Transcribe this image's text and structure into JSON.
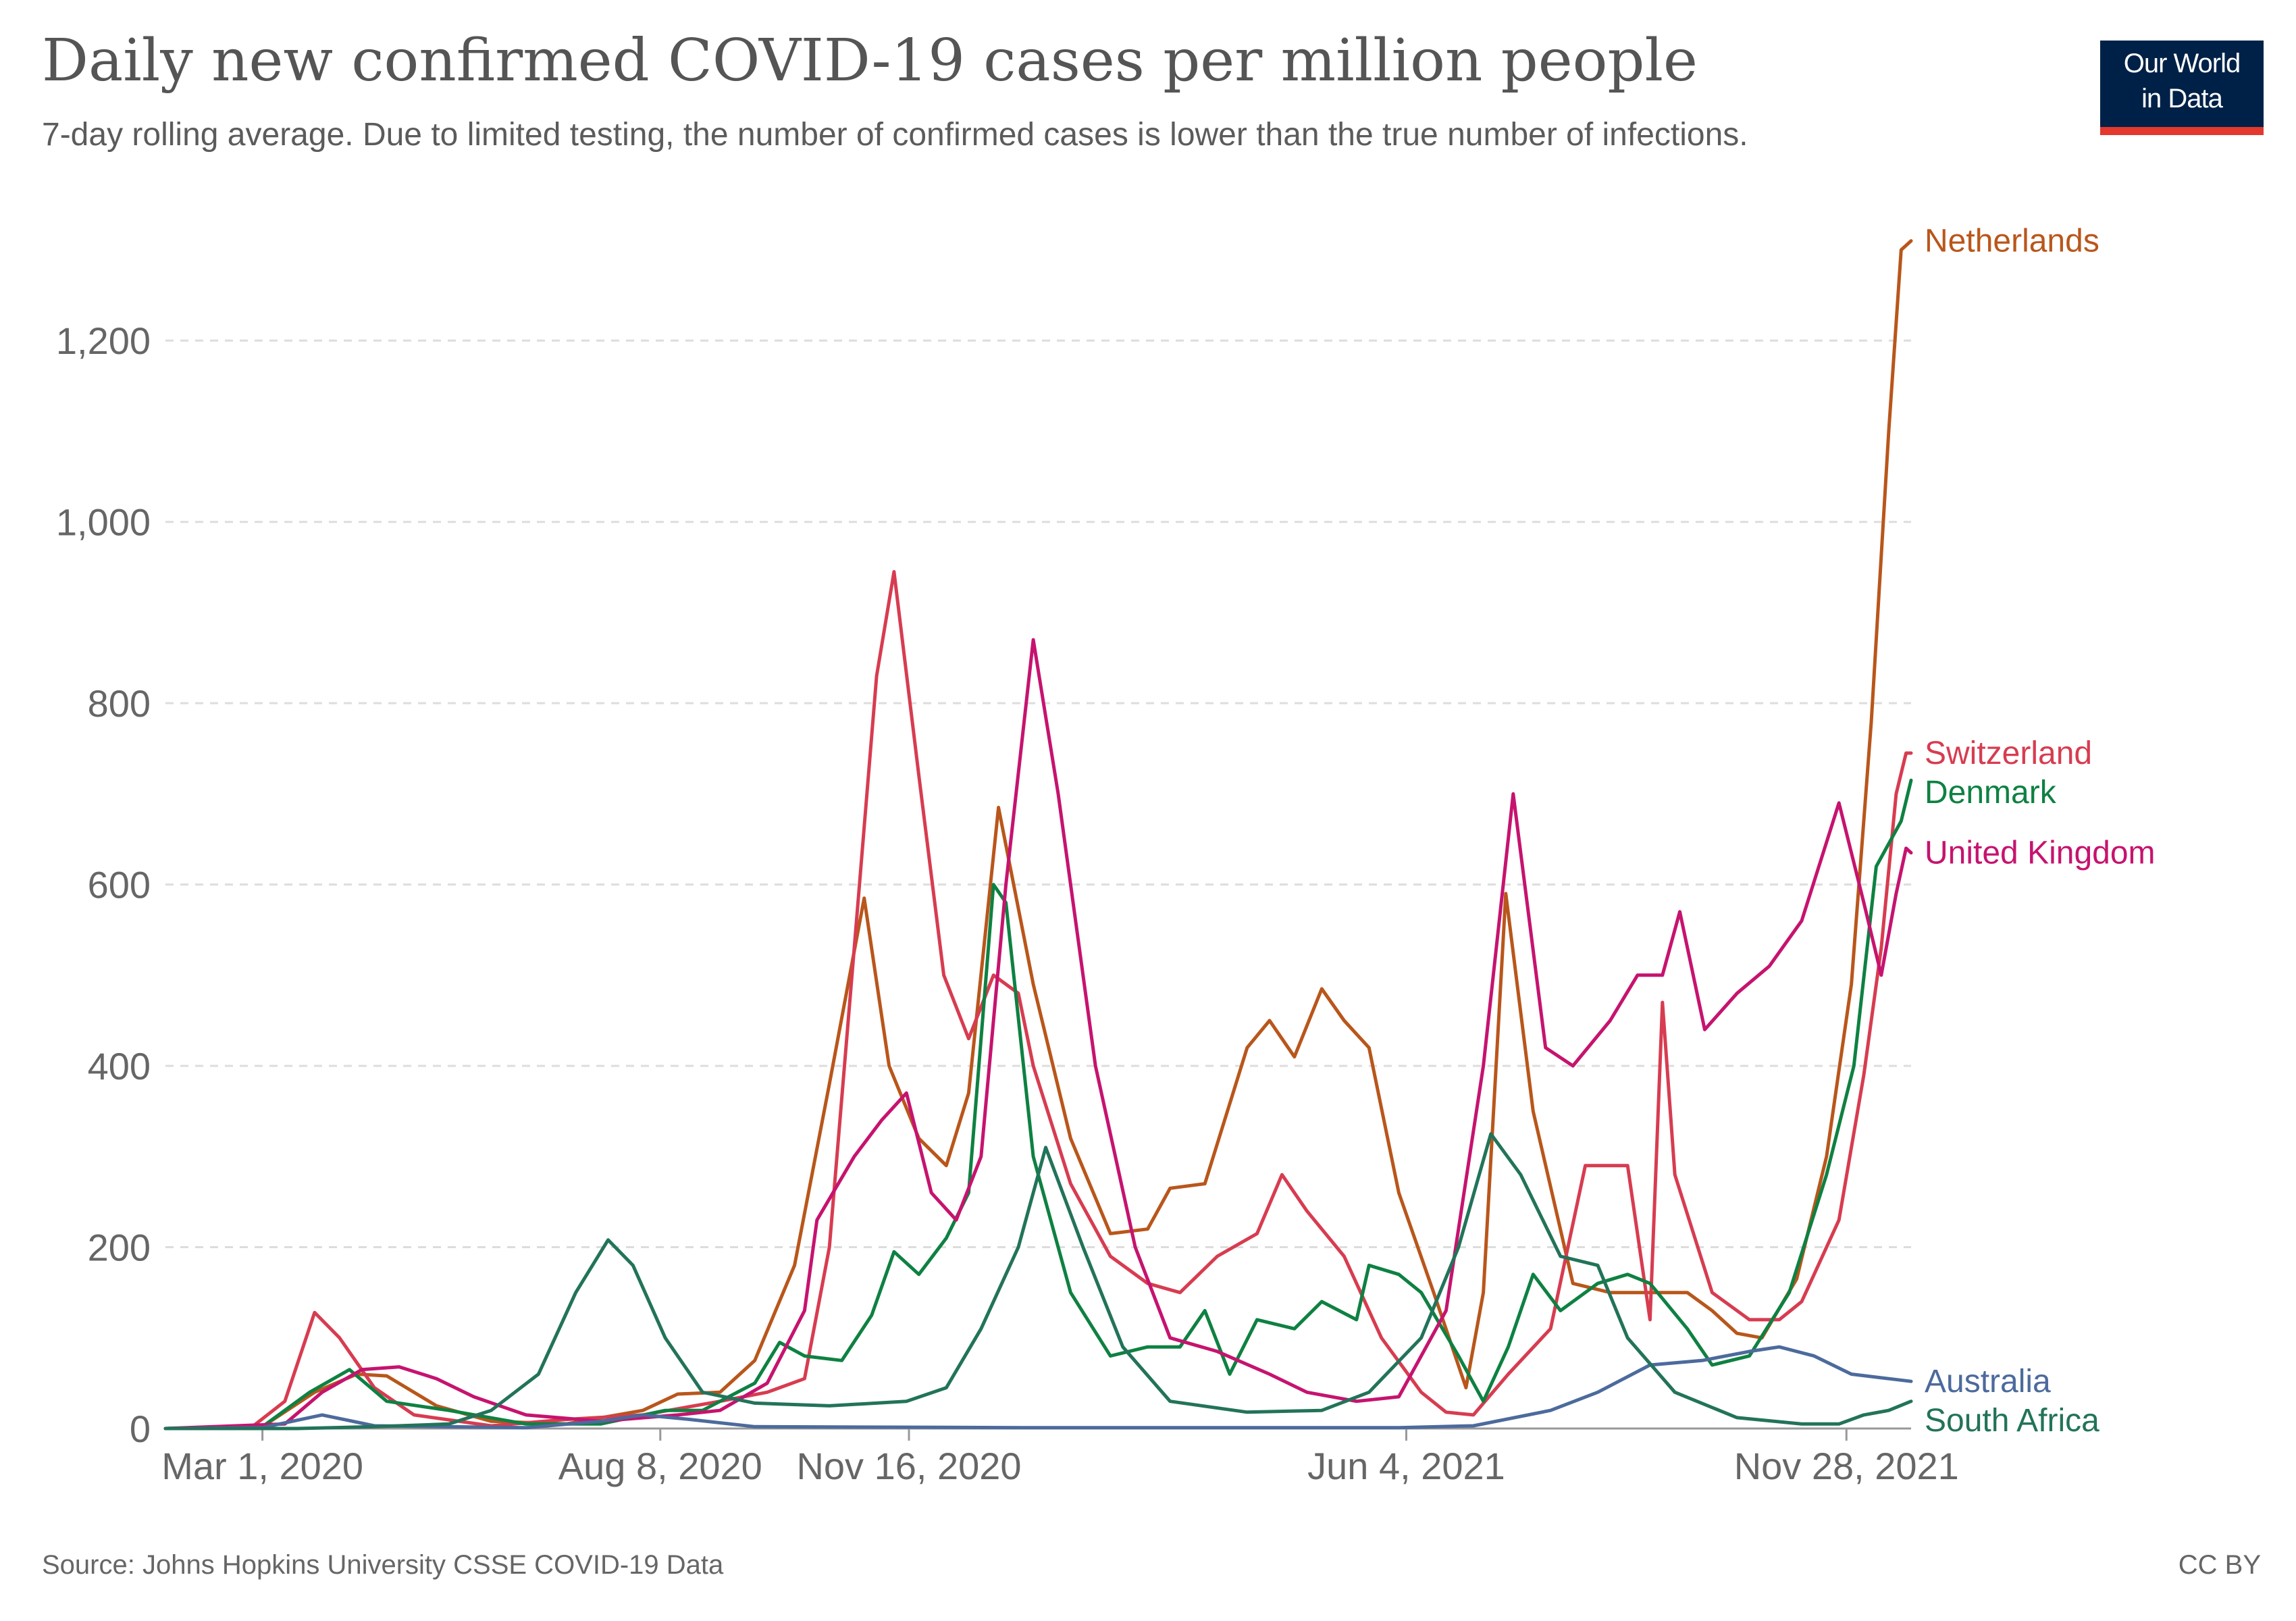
{
  "title": "Daily new confirmed COVID-19 cases per million people",
  "subtitle": "7-day rolling average. Due to limited testing, the number of confirmed cases is lower than the true number of infections.",
  "logo": {
    "line1": "Our World",
    "line2": "in Data"
  },
  "footer": {
    "source": "Source: Johns Hopkins University CSSE COVID-19 Data",
    "license": "CC BY"
  },
  "colors": {
    "Netherlands": "#b9561b",
    "Switzerland": "#d73c50",
    "Denmark": "#0e8142",
    "United Kingdom": "#c6136f",
    "Australia": "#4c6a9c",
    "South Africa": "#22735a",
    "grid": "#dddddd",
    "axis": "#999999",
    "tick_text": "#666666"
  },
  "chart_data": {
    "type": "line",
    "x_unit": "date",
    "xlim": [
      "2020-01-22",
      "2021-12-24"
    ],
    "ylim": [
      0,
      1300
    ],
    "yticks": [
      0,
      200,
      400,
      600,
      800,
      1000,
      1200
    ],
    "ytick_labels": [
      "0",
      "200",
      "400",
      "600",
      "800",
      "1,000",
      "1,200"
    ],
    "xticks": [
      "2020-03-01",
      "2020-08-08",
      "2020-11-16",
      "2021-06-04",
      "2021-11-28"
    ],
    "xtick_labels": [
      "Mar 1, 2020",
      "Aug 8, 2020",
      "Nov 16, 2020",
      "Jun 4, 2021",
      "Nov 28, 2021"
    ],
    "grid": true,
    "legend": "line-end labels",
    "series": [
      {
        "name": "Netherlands",
        "points": [
          [
            "2020-01-22",
            0
          ],
          [
            "2020-03-01",
            2
          ],
          [
            "2020-03-22",
            40
          ],
          [
            "2020-04-08",
            60
          ],
          [
            "2020-04-20",
            58
          ],
          [
            "2020-05-10",
            25
          ],
          [
            "2020-06-01",
            8
          ],
          [
            "2020-07-01",
            5
          ],
          [
            "2020-08-01",
            20
          ],
          [
            "2020-08-15",
            38
          ],
          [
            "2020-09-01",
            40
          ],
          [
            "2020-09-15",
            75
          ],
          [
            "2020-10-01",
            180
          ],
          [
            "2020-10-15",
            380
          ],
          [
            "2020-10-29",
            585
          ],
          [
            "2020-11-08",
            400
          ],
          [
            "2020-11-20",
            320
          ],
          [
            "2020-12-01",
            290
          ],
          [
            "2020-12-10",
            370
          ],
          [
            "2020-12-22",
            685
          ],
          [
            "2021-01-05",
            490
          ],
          [
            "2021-01-20",
            320
          ],
          [
            "2021-02-05",
            215
          ],
          [
            "2021-02-20",
            220
          ],
          [
            "2021-03-01",
            265
          ],
          [
            "2021-03-15",
            270
          ],
          [
            "2021-04-01",
            420
          ],
          [
            "2021-04-10",
            450
          ],
          [
            "2021-04-20",
            410
          ],
          [
            "2021-05-01",
            485
          ],
          [
            "2021-05-10",
            450
          ],
          [
            "2021-05-20",
            420
          ],
          [
            "2021-06-01",
            260
          ],
          [
            "2021-06-15",
            150
          ],
          [
            "2021-06-28",
            45
          ],
          [
            "2021-07-05",
            150
          ],
          [
            "2021-07-14",
            590
          ],
          [
            "2021-07-25",
            350
          ],
          [
            "2021-08-10",
            160
          ],
          [
            "2021-08-25",
            150
          ],
          [
            "2021-09-10",
            150
          ],
          [
            "2021-09-25",
            150
          ],
          [
            "2021-10-05",
            130
          ],
          [
            "2021-10-15",
            105
          ],
          [
            "2021-10-25",
            100
          ],
          [
            "2021-11-08",
            165
          ],
          [
            "2021-11-20",
            300
          ],
          [
            "2021-11-30",
            490
          ],
          [
            "2021-12-08",
            780
          ],
          [
            "2021-12-15",
            1100
          ],
          [
            "2021-12-20",
            1300
          ],
          [
            "2021-12-24",
            1310
          ]
        ]
      },
      {
        "name": "Switzerland",
        "points": [
          [
            "2020-01-22",
            0
          ],
          [
            "2020-02-25",
            0
          ],
          [
            "2020-03-10",
            30
          ],
          [
            "2020-03-22",
            128
          ],
          [
            "2020-04-01",
            100
          ],
          [
            "2020-04-15",
            45
          ],
          [
            "2020-05-01",
            15
          ],
          [
            "2020-06-01",
            3
          ],
          [
            "2020-07-01",
            10
          ],
          [
            "2020-08-01",
            15
          ],
          [
            "2020-09-01",
            30
          ],
          [
            "2020-09-20",
            40
          ],
          [
            "2020-10-05",
            55
          ],
          [
            "2020-10-15",
            200
          ],
          [
            "2020-10-25",
            530
          ],
          [
            "2020-11-03",
            830
          ],
          [
            "2020-11-10",
            945
          ],
          [
            "2020-11-20",
            720
          ],
          [
            "2020-11-30",
            500
          ],
          [
            "2020-12-10",
            430
          ],
          [
            "2020-12-20",
            500
          ],
          [
            "2020-12-30",
            480
          ],
          [
            "2021-01-05",
            400
          ],
          [
            "2021-01-20",
            270
          ],
          [
            "2021-02-05",
            190
          ],
          [
            "2021-02-20",
            160
          ],
          [
            "2021-03-05",
            150
          ],
          [
            "2021-03-20",
            190
          ],
          [
            "2021-04-05",
            215
          ],
          [
            "2021-04-15",
            280
          ],
          [
            "2021-04-25",
            240
          ],
          [
            "2021-05-10",
            190
          ],
          [
            "2021-05-25",
            100
          ],
          [
            "2021-06-10",
            40
          ],
          [
            "2021-06-20",
            18
          ],
          [
            "2021-07-01",
            15
          ],
          [
            "2021-07-15",
            60
          ],
          [
            "2021-08-01",
            110
          ],
          [
            "2021-08-15",
            290
          ],
          [
            "2021-09-01",
            290
          ],
          [
            "2021-09-10",
            120
          ],
          [
            "2021-09-15",
            470
          ],
          [
            "2021-09-20",
            280
          ],
          [
            "2021-10-05",
            150
          ],
          [
            "2021-10-20",
            120
          ],
          [
            "2021-11-01",
            120
          ],
          [
            "2021-11-10",
            140
          ],
          [
            "2021-11-25",
            230
          ],
          [
            "2021-12-05",
            390
          ],
          [
            "2021-12-12",
            530
          ],
          [
            "2021-12-18",
            700
          ],
          [
            "2021-12-22",
            745
          ],
          [
            "2021-12-24",
            745
          ]
        ]
      },
      {
        "name": "Denmark",
        "points": [
          [
            "2020-01-22",
            0
          ],
          [
            "2020-03-01",
            2
          ],
          [
            "2020-03-20",
            40
          ],
          [
            "2020-04-05",
            65
          ],
          [
            "2020-04-20",
            30
          ],
          [
            "2020-05-15",
            20
          ],
          [
            "2020-06-15",
            5
          ],
          [
            "2020-07-15",
            5
          ],
          [
            "2020-08-10",
            20
          ],
          [
            "2020-08-25",
            20
          ],
          [
            "2020-09-15",
            50
          ],
          [
            "2020-09-25",
            95
          ],
          [
            "2020-10-05",
            80
          ],
          [
            "2020-10-20",
            75
          ],
          [
            "2020-11-01",
            125
          ],
          [
            "2020-11-10",
            195
          ],
          [
            "2020-11-20",
            170
          ],
          [
            "2020-12-01",
            210
          ],
          [
            "2020-12-10",
            260
          ],
          [
            "2020-12-20",
            600
          ],
          [
            "2020-12-25",
            580
          ],
          [
            "2021-01-05",
            300
          ],
          [
            "2021-01-20",
            150
          ],
          [
            "2021-02-05",
            80
          ],
          [
            "2021-02-20",
            90
          ],
          [
            "2021-03-05",
            90
          ],
          [
            "2021-03-15",
            130
          ],
          [
            "2021-03-25",
            60
          ],
          [
            "2021-04-05",
            120
          ],
          [
            "2021-04-20",
            110
          ],
          [
            "2021-05-01",
            140
          ],
          [
            "2021-05-15",
            120
          ],
          [
            "2021-05-20",
            180
          ],
          [
            "2021-06-01",
            170
          ],
          [
            "2021-06-10",
            150
          ],
          [
            "2021-06-25",
            80
          ],
          [
            "2021-07-05",
            30
          ],
          [
            "2021-07-15",
            90
          ],
          [
            "2021-07-25",
            170
          ],
          [
            "2021-08-05",
            130
          ],
          [
            "2021-08-20",
            160
          ],
          [
            "2021-09-01",
            170
          ],
          [
            "2021-09-10",
            160
          ],
          [
            "2021-09-25",
            110
          ],
          [
            "2021-10-05",
            70
          ],
          [
            "2021-10-20",
            80
          ],
          [
            "2021-11-05",
            150
          ],
          [
            "2021-11-20",
            280
          ],
          [
            "2021-12-01",
            400
          ],
          [
            "2021-12-10",
            620
          ],
          [
            "2021-12-20",
            670
          ],
          [
            "2021-12-24",
            715
          ]
        ]
      },
      {
        "name": "United Kingdom",
        "points": [
          [
            "2020-01-22",
            0
          ],
          [
            "2020-03-10",
            5
          ],
          [
            "2020-03-25",
            40
          ],
          [
            "2020-04-10",
            65
          ],
          [
            "2020-04-25",
            68
          ],
          [
            "2020-05-10",
            55
          ],
          [
            "2020-05-25",
            35
          ],
          [
            "2020-06-15",
            15
          ],
          [
            "2020-07-15",
            8
          ],
          [
            "2020-08-15",
            15
          ],
          [
            "2020-09-01",
            20
          ],
          [
            "2020-09-20",
            50
          ],
          [
            "2020-10-05",
            130
          ],
          [
            "2020-10-10",
            230
          ],
          [
            "2020-10-25",
            300
          ],
          [
            "2020-11-05",
            340
          ],
          [
            "2020-11-15",
            370
          ],
          [
            "2020-11-25",
            260
          ],
          [
            "2020-12-05",
            230
          ],
          [
            "2020-12-15",
            300
          ],
          [
            "2020-12-25",
            600
          ],
          [
            "2021-01-05",
            870
          ],
          [
            "2021-01-15",
            700
          ],
          [
            "2021-01-30",
            400
          ],
          [
            "2021-02-15",
            200
          ],
          [
            "2021-03-01",
            100
          ],
          [
            "2021-03-20",
            85
          ],
          [
            "2021-04-10",
            60
          ],
          [
            "2021-04-25",
            40
          ],
          [
            "2021-05-15",
            30
          ],
          [
            "2021-06-01",
            35
          ],
          [
            "2021-06-20",
            130
          ],
          [
            "2021-07-05",
            400
          ],
          [
            "2021-07-17",
            700
          ],
          [
            "2021-07-30",
            420
          ],
          [
            "2021-08-10",
            400
          ],
          [
            "2021-08-25",
            450
          ],
          [
            "2021-09-05",
            500
          ],
          [
            "2021-09-15",
            500
          ],
          [
            "2021-09-22",
            570
          ],
          [
            "2021-10-02",
            440
          ],
          [
            "2021-10-15",
            480
          ],
          [
            "2021-10-28",
            510
          ],
          [
            "2021-11-10",
            560
          ],
          [
            "2021-11-25",
            690
          ],
          [
            "2021-12-05",
            580
          ],
          [
            "2021-12-12",
            500
          ],
          [
            "2021-12-18",
            590
          ],
          [
            "2021-12-22",
            640
          ],
          [
            "2021-12-24",
            635
          ]
        ]
      },
      {
        "name": "Australia",
        "points": [
          [
            "2020-01-22",
            0
          ],
          [
            "2020-03-01",
            1
          ],
          [
            "2020-03-25",
            15
          ],
          [
            "2020-04-15",
            3
          ],
          [
            "2020-06-15",
            1
          ],
          [
            "2020-07-15",
            8
          ],
          [
            "2020-08-01",
            15
          ],
          [
            "2020-08-20",
            10
          ],
          [
            "2020-09-15",
            2
          ],
          [
            "2021-01-01",
            1
          ],
          [
            "2021-06-01",
            1
          ],
          [
            "2021-07-01",
            3
          ],
          [
            "2021-08-01",
            20
          ],
          [
            "2021-08-20",
            40
          ],
          [
            "2021-09-10",
            70
          ],
          [
            "2021-10-01",
            75
          ],
          [
            "2021-10-20",
            85
          ],
          [
            "2021-11-01",
            90
          ],
          [
            "2021-11-15",
            80
          ],
          [
            "2021-11-30",
            60
          ],
          [
            "2021-12-15",
            55
          ],
          [
            "2021-12-24",
            52
          ]
        ]
      },
      {
        "name": "South Africa",
        "points": [
          [
            "2020-01-22",
            0
          ],
          [
            "2020-03-15",
            0
          ],
          [
            "2020-04-15",
            2
          ],
          [
            "2020-05-15",
            5
          ],
          [
            "2020-06-01",
            20
          ],
          [
            "2020-06-20",
            60
          ],
          [
            "2020-07-05",
            150
          ],
          [
            "2020-07-18",
            208
          ],
          [
            "2020-07-28",
            180
          ],
          [
            "2020-08-10",
            100
          ],
          [
            "2020-08-25",
            40
          ],
          [
            "2020-09-15",
            28
          ],
          [
            "2020-10-15",
            25
          ],
          [
            "2020-11-15",
            30
          ],
          [
            "2020-12-01",
            45
          ],
          [
            "2020-12-15",
            110
          ],
          [
            "2020-12-30",
            200
          ],
          [
            "2021-01-10",
            310
          ],
          [
            "2021-01-25",
            200
          ],
          [
            "2021-02-10",
            90
          ],
          [
            "2021-03-01",
            30
          ],
          [
            "2021-04-01",
            18
          ],
          [
            "2021-05-01",
            20
          ],
          [
            "2021-05-20",
            40
          ],
          [
            "2021-06-10",
            100
          ],
          [
            "2021-06-25",
            200
          ],
          [
            "2021-07-08",
            325
          ],
          [
            "2021-07-20",
            280
          ],
          [
            "2021-08-05",
            190
          ],
          [
            "2021-08-20",
            180
          ],
          [
            "2021-09-01",
            100
          ],
          [
            "2021-09-20",
            40
          ],
          [
            "2021-10-15",
            12
          ],
          [
            "2021-11-10",
            5
          ],
          [
            "2021-11-25",
            5
          ],
          [
            "2021-12-05",
            15
          ],
          [
            "2021-12-15",
            20
          ],
          [
            "2021-12-24",
            30
          ]
        ]
      }
    ]
  }
}
